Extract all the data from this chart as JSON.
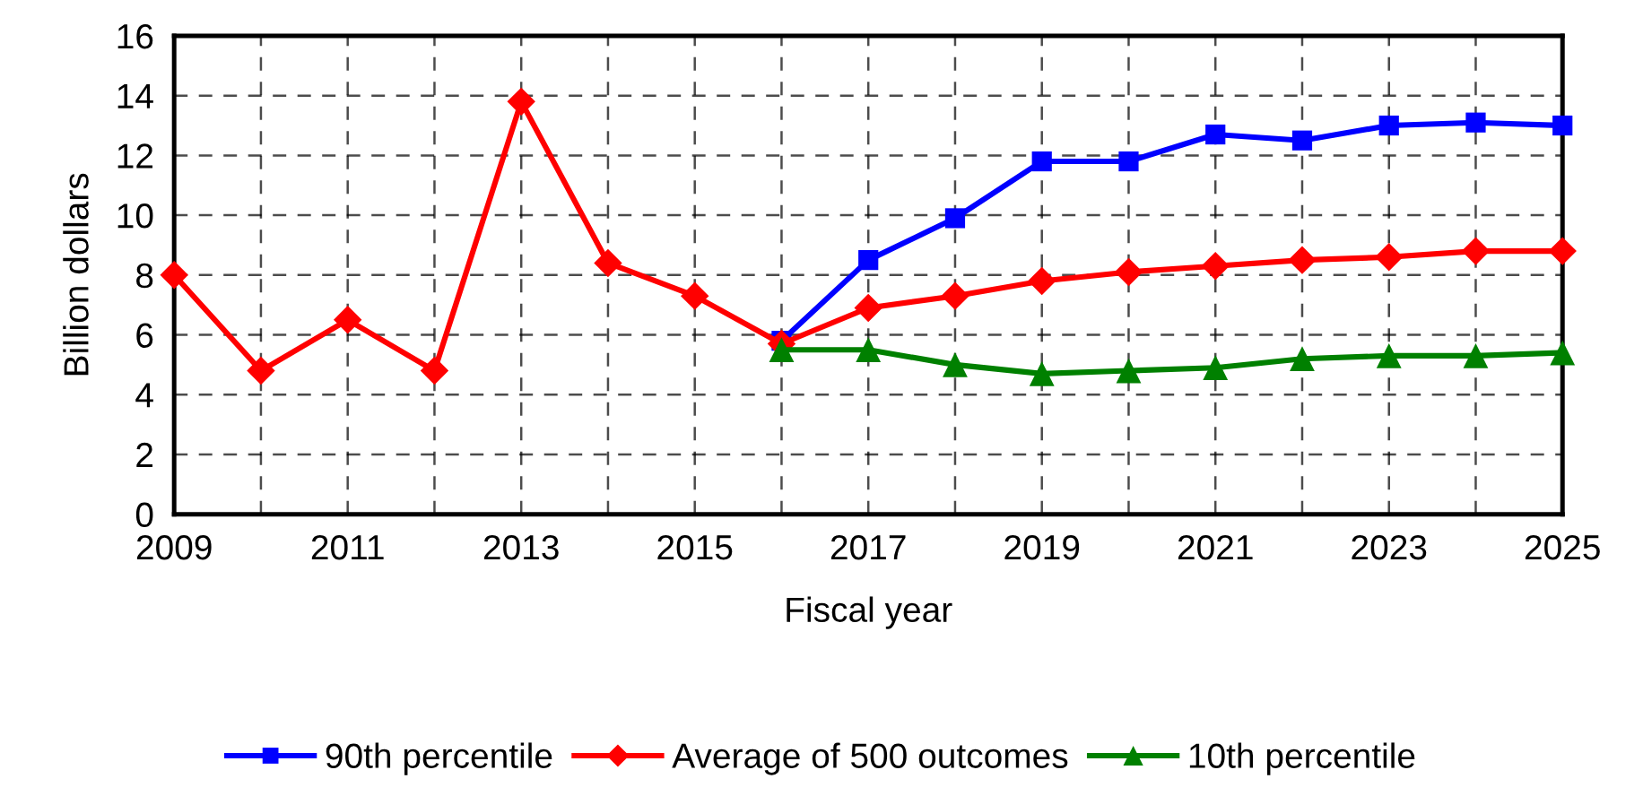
{
  "chart_data": {
    "type": "line",
    "xlabel": "Fiscal year",
    "ylabel": "Billion dollars",
    "xlim": [
      2009,
      2025
    ],
    "xticks": [
      2009,
      {
        "value": 2010,
        "label": null
      },
      2011,
      {
        "value": 2012,
        "label": null
      },
      2013,
      {
        "value": 2014,
        "label": null
      },
      2015,
      {
        "value": 2016,
        "label": null
      },
      2017,
      {
        "value": 2018,
        "label": null
      },
      2019,
      {
        "value": 2020,
        "label": null
      },
      2021,
      {
        "value": 2022,
        "label": null
      },
      2023,
      {
        "value": 2024,
        "label": null
      },
      2025
    ],
    "ylim": [
      0,
      16
    ],
    "yticks": [
      0,
      2,
      4,
      6,
      8,
      10,
      12,
      14,
      16
    ],
    "grid": true,
    "legend": "bottom",
    "line_style": "solid",
    "series": [
      {
        "name": "90th percentile",
        "color": "#0000ff",
        "marker": "square",
        "x": [
          2016,
          2017,
          2018,
          2019,
          2020,
          2021,
          2022,
          2023,
          2024,
          2025
        ],
        "values": [
          5.8,
          8.5,
          9.9,
          11.8,
          11.8,
          12.7,
          12.5,
          13.0,
          13.1,
          13.0
        ]
      },
      {
        "name": "Average of 500 outcomes",
        "color": "#ff0000",
        "marker": "diamond",
        "x": [
          2009,
          2010,
          2011,
          2012,
          2013,
          2014,
          2015,
          2016,
          2017,
          2018,
          2019,
          2020,
          2021,
          2022,
          2023,
          2024,
          2025
        ],
        "values": [
          8.0,
          4.8,
          6.5,
          4.8,
          13.8,
          8.4,
          7.3,
          5.7,
          6.9,
          7.3,
          7.8,
          8.1,
          8.3,
          8.5,
          8.6,
          8.8,
          8.8
        ]
      },
      {
        "name": "10th percentile",
        "color": "#008000",
        "marker": "triangle",
        "x": [
          2016,
          2017,
          2018,
          2019,
          2020,
          2021,
          2022,
          2023,
          2024,
          2025
        ],
        "values": [
          5.5,
          5.5,
          5.0,
          4.7,
          4.8,
          4.9,
          5.2,
          5.3,
          5.3,
          5.4
        ]
      }
    ]
  }
}
